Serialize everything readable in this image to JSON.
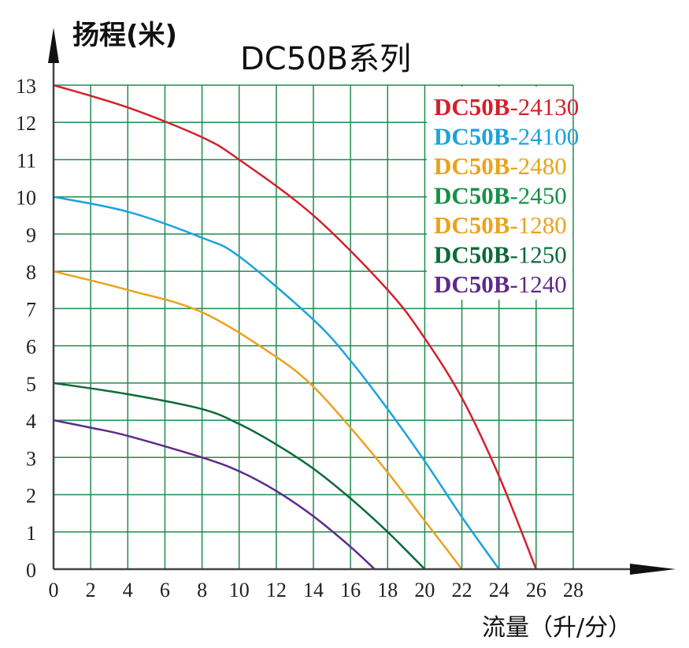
{
  "chart_data": {
    "type": "line",
    "title": "DC50B系列",
    "ylabel": "扬程(米)",
    "xlabel": "流量（升/分）",
    "xlim": [
      0,
      28
    ],
    "ylim": [
      0,
      13
    ],
    "x_ticks": [
      "0",
      "2",
      "4",
      "6",
      "8",
      "10",
      "12",
      "14",
      "16",
      "18",
      "20",
      "22",
      "24",
      "26",
      "28"
    ],
    "y_ticks": [
      "0",
      "1",
      "2",
      "3",
      "4",
      "5",
      "6",
      "7",
      "8",
      "9",
      "10",
      "11",
      "12",
      "13"
    ],
    "grid": true,
    "grid_color": "#1e8c4e",
    "legend_position": "top-right",
    "legend": [
      {
        "model": "DC50B",
        "suffix": "-24130",
        "color": "#d4202c"
      },
      {
        "model": "DC50B",
        "suffix": "-24100",
        "color": "#1aa3dc"
      },
      {
        "model": "DC50B",
        "suffix": "-2480",
        "color": "#eba21e"
      },
      {
        "model": "DC50B",
        "suffix": "-2450",
        "color": "#159048"
      },
      {
        "model": "DC50B",
        "suffix": "-1280",
        "color": "#eba21e"
      },
      {
        "model": "DC50B",
        "suffix": "-1250",
        "color": "#0b6a3a"
      },
      {
        "model": "DC50B",
        "suffix": "-1240",
        "color": "#5e2a8c"
      }
    ],
    "series": [
      {
        "name": "DC50B-24130",
        "color": "#d4202c",
        "x": [
          0,
          4,
          8,
          10,
          14,
          18,
          20,
          22,
          24,
          26
        ],
        "y": [
          13,
          12.4,
          11.6,
          11.0,
          9.5,
          7.5,
          6.2,
          4.6,
          2.5,
          0
        ]
      },
      {
        "name": "DC50B-24100",
        "color": "#1aa3dc",
        "x": [
          0,
          4,
          8,
          10,
          14,
          16,
          18,
          20,
          22,
          24
        ],
        "y": [
          10,
          9.6,
          8.9,
          8.4,
          6.7,
          5.6,
          4.3,
          2.9,
          1.4,
          0
        ]
      },
      {
        "name": "DC50B-2480",
        "color": "#eba21e",
        "x": [
          0,
          4,
          8,
          12,
          14,
          16,
          18,
          20,
          22
        ],
        "y": [
          8,
          7.5,
          6.9,
          5.7,
          4.9,
          3.8,
          2.6,
          1.3,
          0
        ]
      },
      {
        "name": "DC50B-1250",
        "color": "#0b6a3a",
        "x": [
          0,
          4,
          8,
          10,
          12,
          14,
          16,
          18,
          20
        ],
        "y": [
          5,
          4.7,
          4.3,
          3.9,
          3.35,
          2.7,
          1.9,
          1.0,
          0
        ]
      },
      {
        "name": "DC50B-1240",
        "color": "#5e2a8c",
        "x": [
          0,
          2,
          4,
          8,
          10,
          12,
          14,
          16,
          17.3
        ],
        "y": [
          4,
          3.8,
          3.58,
          3.0,
          2.63,
          2.1,
          1.42,
          0.6,
          0
        ]
      }
    ]
  }
}
